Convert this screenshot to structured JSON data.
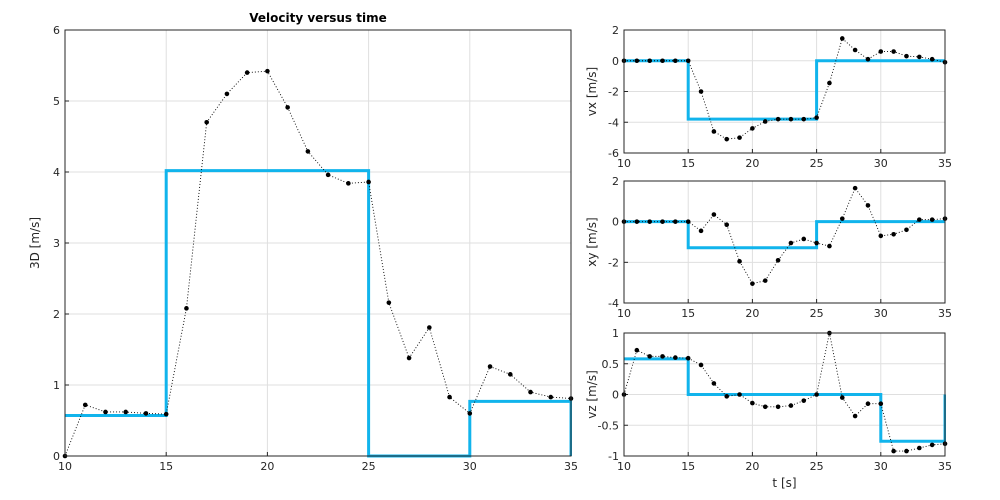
{
  "colors": {
    "background": "#ffffff",
    "step": "#11b4ec",
    "dots": "#000000",
    "grid": "#dfdfdf",
    "axis": "#262626"
  },
  "chart_data": [
    {
      "id": "main",
      "type": "line",
      "title": "Velocity versus time",
      "xlabel": "",
      "ylabel": "3D [m/s]",
      "xlim": [
        10,
        35
      ],
      "ylim": [
        0,
        6
      ],
      "xticks": [
        "10",
        "15",
        "20",
        "25",
        "30",
        "35"
      ],
      "yticks": [
        "0",
        "1",
        "2",
        "3",
        "4",
        "5",
        "6"
      ],
      "grid": true,
      "series": [
        {
          "style": "step",
          "x": [
            10,
            15,
            15,
            25,
            25,
            30,
            30,
            35,
            35
          ],
          "y": [
            0.57,
            0.57,
            4.02,
            4.02,
            0,
            0,
            0.77,
            0.77,
            0
          ]
        },
        {
          "style": "dotted-markers",
          "x": [
            10,
            11,
            12,
            13,
            14,
            15,
            16,
            17,
            18,
            19,
            20,
            21,
            22,
            23,
            24,
            25,
            26,
            27,
            28,
            29,
            30,
            31,
            32,
            33,
            34,
            35
          ],
          "y": [
            0,
            0.72,
            0.62,
            0.62,
            0.6,
            0.59,
            2.08,
            4.7,
            5.1,
            5.4,
            5.42,
            4.91,
            4.29,
            3.96,
            3.84,
            3.86,
            2.16,
            1.38,
            1.81,
            0.83,
            0.6,
            1.26,
            1.15,
            0.9,
            0.83,
            0.81
          ]
        }
      ]
    },
    {
      "id": "vx",
      "type": "line",
      "xlabel": "",
      "ylabel": "vx [m/s]",
      "xlim": [
        10,
        35
      ],
      "ylim": [
        -6,
        2
      ],
      "xticks": [
        "10",
        "15",
        "20",
        "25",
        "30",
        "35"
      ],
      "yticks": [
        "-6",
        "-4",
        "-2",
        "0",
        "2"
      ],
      "grid": true,
      "series": [
        {
          "style": "step",
          "x": [
            10,
            15,
            15,
            25,
            25,
            35
          ],
          "y": [
            0,
            0,
            -3.8,
            -3.8,
            0,
            0
          ]
        },
        {
          "style": "dotted-markers",
          "x": [
            10,
            11,
            12,
            13,
            14,
            15,
            16,
            17,
            18,
            19,
            20,
            21,
            22,
            23,
            24,
            25,
            26,
            27,
            28,
            29,
            30,
            31,
            32,
            33,
            34,
            35
          ],
          "y": [
            0,
            0,
            0,
            0,
            0,
            0,
            -2.0,
            -4.6,
            -5.1,
            -5.0,
            -4.4,
            -3.95,
            -3.8,
            -3.8,
            -3.8,
            -3.7,
            -1.45,
            1.45,
            0.7,
            0.1,
            0.6,
            0.6,
            0.3,
            0.25,
            0.1,
            -0.1
          ]
        }
      ]
    },
    {
      "id": "vxy",
      "type": "line",
      "xlabel": "",
      "ylabel": "xy [m/s]",
      "xlim": [
        10,
        35
      ],
      "ylim": [
        -4,
        2
      ],
      "xticks": [
        "10",
        "15",
        "20",
        "25",
        "30",
        "35"
      ],
      "yticks": [
        "-4",
        "-2",
        "0",
        "2"
      ],
      "grid": true,
      "series": [
        {
          "style": "step",
          "x": [
            10,
            15,
            15,
            25,
            25,
            35
          ],
          "y": [
            0,
            0,
            -1.28,
            -1.28,
            0,
            0
          ]
        },
        {
          "style": "dotted-markers",
          "x": [
            10,
            11,
            12,
            13,
            14,
            15,
            16,
            17,
            18,
            19,
            20,
            21,
            22,
            23,
            24,
            25,
            26,
            27,
            28,
            29,
            30,
            31,
            32,
            33,
            34,
            35
          ],
          "y": [
            0,
            0,
            0,
            0,
            0,
            0,
            -0.45,
            0.35,
            -0.15,
            -1.95,
            -3.05,
            -2.9,
            -1.9,
            -1.05,
            -0.85,
            -1.05,
            -1.2,
            0.15,
            1.65,
            0.8,
            -0.7,
            -0.62,
            -0.4,
            0.1,
            0.1,
            0.15
          ]
        }
      ]
    },
    {
      "id": "vz",
      "type": "line",
      "xlabel": "t [s]",
      "ylabel": "vz [m/s]",
      "xlim": [
        10,
        35
      ],
      "ylim": [
        -1,
        1
      ],
      "xticks": [
        "10",
        "15",
        "20",
        "25",
        "30",
        "35"
      ],
      "yticks": [
        "-1",
        "-0.5",
        "0",
        "0.5",
        "1"
      ],
      "grid": true,
      "series": [
        {
          "style": "step",
          "x": [
            10,
            15,
            15,
            30,
            30,
            35,
            35
          ],
          "y": [
            0.58,
            0.58,
            0,
            0,
            -0.76,
            -0.76,
            0
          ]
        },
        {
          "style": "dotted-markers",
          "x": [
            10,
            11,
            12,
            13,
            14,
            15,
            16,
            17,
            18,
            19,
            20,
            21,
            22,
            23,
            24,
            25,
            26,
            27,
            28,
            29,
            30,
            31,
            32,
            33,
            34,
            35
          ],
          "y": [
            0,
            0.72,
            0.62,
            0.62,
            0.6,
            0.59,
            0.48,
            0.18,
            -0.03,
            0,
            -0.14,
            -0.2,
            -0.2,
            -0.18,
            -0.1,
            0,
            1.0,
            -0.05,
            -0.35,
            -0.15,
            -0.15,
            -0.92,
            -0.92,
            -0.87,
            -0.82,
            -0.8
          ]
        }
      ]
    }
  ]
}
